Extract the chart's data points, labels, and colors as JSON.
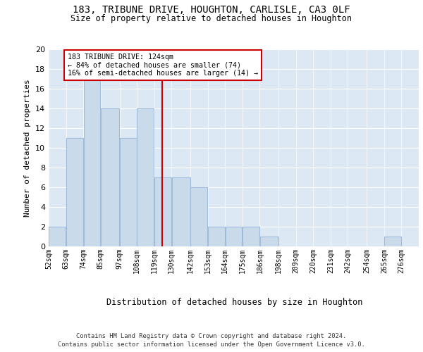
{
  "title1": "183, TRIBUNE DRIVE, HOUGHTON, CARLISLE, CA3 0LF",
  "title2": "Size of property relative to detached houses in Houghton",
  "xlabel": "Distribution of detached houses by size in Houghton",
  "ylabel": "Number of detached properties",
  "categories": [
    "52sqm",
    "63sqm",
    "74sqm",
    "85sqm",
    "97sqm",
    "108sqm",
    "119sqm",
    "130sqm",
    "142sqm",
    "153sqm",
    "164sqm",
    "175sqm",
    "186sqm",
    "198sqm",
    "209sqm",
    "220sqm",
    "231sqm",
    "242sqm",
    "254sqm",
    "265sqm",
    "276sqm"
  ],
  "values": [
    2,
    11,
    17,
    14,
    11,
    14,
    7,
    7,
    6,
    2,
    2,
    2,
    1,
    0,
    0,
    0,
    0,
    0,
    0,
    1,
    0
  ],
  "bar_color": "#c9daea",
  "bar_edgecolor": "#a0bcd8",
  "vline_x": 124,
  "vline_color": "#cc0000",
  "annotation_text": "183 TRIBUNE DRIVE: 124sqm\n← 84% of detached houses are smaller (74)\n16% of semi-detached houses are larger (14) →",
  "annotation_box_color": "#ffffff",
  "annotation_box_edgecolor": "#cc0000",
  "ylim": [
    0,
    20
  ],
  "yticks": [
    0,
    2,
    4,
    6,
    8,
    10,
    12,
    14,
    16,
    18,
    20
  ],
  "background_color": "#dde8f5",
  "footer1": "Contains HM Land Registry data © Crown copyright and database right 2024.",
  "footer2": "Contains public sector information licensed under the Open Government Licence v3.0.",
  "bin_edges": [
    52,
    63,
    74,
    85,
    97,
    108,
    119,
    130,
    142,
    153,
    164,
    175,
    186,
    198,
    209,
    220,
    231,
    242,
    254,
    265,
    276,
    287
  ]
}
